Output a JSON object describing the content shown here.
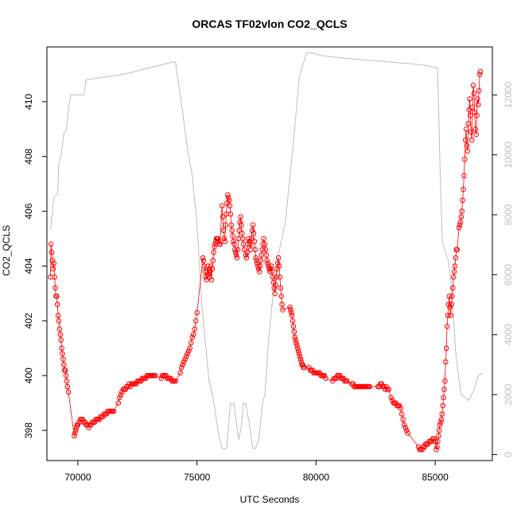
{
  "chart_data": {
    "type": "scatter",
    "title": "ORCAS TF02vlon CO2_QCLS",
    "xlabel": "UTC Seconds",
    "ylabel": "CO2_QCLS",
    "xlim": [
      68700,
      87400
    ],
    "ylim": [
      396.9,
      412.0
    ],
    "y2lim": [
      -200,
      13600
    ],
    "x_ticks": [
      70000,
      75000,
      80000,
      85000
    ],
    "y_ticks": [
      398,
      400,
      402,
      404,
      406,
      408,
      410
    ],
    "y2_ticks": [
      0,
      2000,
      4000,
      6000,
      8000,
      10000,
      12000
    ],
    "grid": false,
    "colors": {
      "co2": "#ff0000",
      "altitude": "#bebebe",
      "axis": "#000000"
    },
    "series": [
      {
        "x": [
          68850,
          68870,
          68900,
          68930,
          68960,
          68990,
          69020,
          69050,
          69080,
          69110,
          69140,
          69170,
          69200,
          69230,
          69260,
          69290,
          69320,
          69350,
          69380,
          69410,
          69440,
          69470,
          69500,
          69530,
          69560,
          69600,
          69850,
          69880,
          69910,
          69940,
          69970,
          70000,
          70050,
          70100,
          70150,
          70200,
          70250,
          70300,
          70350,
          70400,
          70450,
          70500,
          70550,
          70600,
          70650,
          70700,
          70750,
          70800,
          70850,
          70900,
          70950,
          71000,
          71050,
          71100,
          71150,
          71200,
          71250,
          71300,
          71350,
          71400,
          71450,
          71500,
          71700,
          71750,
          71800,
          71850,
          71900,
          71950,
          72000,
          72050,
          72100,
          72150,
          72200,
          72250,
          72300,
          72350,
          72400,
          72450,
          72500,
          72550,
          72600,
          72650,
          72700,
          72750,
          72800,
          72850,
          72900,
          72950,
          73000,
          73050,
          73100,
          73150,
          73200,
          73250,
          73500,
          73550,
          73600,
          73650,
          73700,
          73750,
          73800,
          73850,
          73900,
          73950,
          74000,
          74050,
          74100,
          74300,
          74350,
          74400,
          74450,
          74500,
          74550,
          74600,
          74650,
          74700,
          74750,
          74800,
          74850,
          74900,
          74950,
          75000,
          75250,
          75280,
          75310,
          75340,
          75370,
          75400,
          75430,
          75460,
          75490,
          75520,
          75550,
          75580,
          75610,
          75640,
          75670,
          75700,
          75730,
          75760,
          75790,
          75820,
          75850,
          75880,
          75910,
          75940,
          75970,
          76050,
          76080,
          76110,
          76140,
          76170,
          76200,
          76230,
          76260,
          76290,
          76320,
          76350,
          76380,
          76410,
          76440,
          76470,
          76500,
          76530,
          76560,
          76590,
          76620,
          76650,
          76680,
          76710,
          76740,
          76770,
          76800,
          76830,
          76860,
          76890,
          76920,
          76950,
          76980,
          77050,
          77080,
          77110,
          77140,
          77170,
          77200,
          77230,
          77260,
          77290,
          77320,
          77350,
          77380,
          77410,
          77440,
          77470,
          77500,
          77530,
          77560,
          77590,
          77620,
          77650,
          77680,
          77710,
          77740,
          77770,
          77800,
          77850,
          77880,
          77910,
          77940,
          77970,
          78000,
          78030,
          78060,
          78090,
          78120,
          78150,
          78180,
          78210,
          78240,
          78270,
          78300,
          78330,
          78360,
          78390,
          78420,
          78450,
          78480,
          78510,
          78540,
          78570,
          78600,
          78900,
          78930,
          78960,
          78990,
          79020,
          79050,
          79080,
          79110,
          79140,
          79170,
          79200,
          79230,
          79260,
          79290,
          79320,
          79350,
          79380,
          79410,
          79440,
          79470,
          79500,
          79700,
          79750,
          79800,
          79850,
          79900,
          79950,
          80000,
          80050,
          80100,
          80150,
          80200,
          80250,
          80300,
          80350,
          80400,
          80700,
          80750,
          80800,
          80850,
          80900,
          80950,
          81000,
          81050,
          81100,
          81150,
          81200,
          81250,
          81300,
          81500,
          81550,
          81600,
          81650,
          81700,
          81750,
          81800,
          81850,
          81900,
          81950,
          82000,
          82050,
          82100,
          82150,
          82200,
          82250,
          82600,
          82650,
          82700,
          82750,
          82800,
          82850,
          82900,
          82950,
          83000,
          83050,
          83150,
          83200,
          83250,
          83300,
          83350,
          83400,
          83450,
          83500,
          83550,
          83600,
          83650,
          83700,
          83750,
          83800,
          83850,
          84300,
          84350,
          84400,
          84450,
          84500,
          84550,
          84600,
          84650,
          84700,
          84750,
          84800,
          84850,
          84900,
          84950,
          85000,
          85050,
          85080,
          85110,
          85140,
          85170,
          85200,
          85230,
          85260,
          85290,
          85320,
          85350,
          85380,
          85410,
          85440,
          85470,
          85500,
          85530,
          85560,
          85590,
          85620,
          85650,
          85680,
          85710,
          85740,
          85770,
          85800,
          85830,
          85860,
          85890,
          85920,
          86000,
          86030,
          86060,
          86090,
          86120,
          86150,
          86180,
          86210,
          86240,
          86270,
          86300,
          86330,
          86360,
          86390,
          86420,
          86450,
          86480,
          86510,
          86540,
          86570,
          86600,
          86630,
          86660,
          86690,
          86720,
          86750,
          86780,
          86810,
          86840,
          86870,
          86900
        ],
        "y": [
          403.6,
          404.8,
          404.5,
          404.2,
          403.9,
          404.1,
          403.6,
          403.2,
          402.9,
          402.9,
          402.6,
          402.2,
          402.0,
          401.7,
          401.5,
          401.3,
          401.0,
          400.8,
          400.6,
          400.4,
          400.2,
          400.2,
          400.0,
          399.8,
          399.6,
          399.4,
          397.8,
          397.9,
          398.0,
          398.1,
          398.2,
          398.2,
          398.3,
          398.4,
          398.4,
          398.4,
          398.3,
          398.3,
          398.2,
          398.2,
          398.1,
          398.2,
          398.2,
          398.3,
          398.3,
          398.3,
          398.4,
          398.4,
          398.4,
          398.4,
          398.5,
          398.5,
          398.5,
          398.6,
          398.6,
          398.6,
          398.7,
          398.7,
          398.7,
          398.7,
          398.7,
          398.7,
          399.0,
          399.2,
          399.3,
          399.4,
          399.5,
          399.5,
          399.5,
          399.6,
          399.6,
          399.7,
          399.6,
          399.7,
          399.7,
          399.7,
          399.7,
          399.7,
          399.8,
          399.8,
          399.8,
          399.8,
          399.9,
          399.9,
          399.9,
          399.9,
          400.0,
          400.0,
          400.0,
          400.0,
          400.0,
          400.0,
          400.0,
          400.0,
          399.9,
          400.0,
          400.0,
          400.0,
          400.0,
          399.9,
          399.9,
          399.9,
          399.9,
          399.8,
          399.8,
          399.8,
          399.8,
          400.1,
          400.3,
          400.4,
          400.5,
          400.6,
          400.7,
          400.8,
          400.9,
          401.0,
          401.2,
          401.4,
          401.5,
          401.7,
          402.0,
          402.3,
          404.3,
          404.2,
          404.0,
          403.8,
          403.6,
          403.5,
          403.8,
          404.0,
          403.7,
          403.6,
          403.8,
          404.0,
          403.5,
          403.9,
          404.2,
          404.5,
          404.7,
          404.8,
          404.9,
          405.0,
          405.0,
          405.0,
          404.9,
          404.8,
          404.8,
          406.2,
          405.8,
          405.3,
          405.0,
          404.9,
          405.5,
          405.9,
          406.3,
          406.6,
          406.5,
          406.4,
          406.2,
          405.9,
          405.5,
          405.3,
          405.1,
          404.9,
          404.8,
          404.6,
          404.5,
          404.4,
          404.3,
          404.6,
          405.0,
          405.3,
          405.6,
          405.8,
          405.5,
          405.2,
          405.0,
          404.8,
          404.6,
          404.4,
          404.3,
          404.5,
          404.8,
          405.0,
          404.9,
          404.8,
          404.6,
          405.0,
          405.3,
          405.5,
          405.2,
          404.9,
          404.6,
          404.3,
          404.2,
          404.1,
          404.0,
          403.9,
          403.8,
          404.0,
          404.2,
          404.4,
          404.6,
          404.8,
          405.0,
          404.8,
          404.6,
          404.4,
          404.2,
          404.1,
          404.0,
          403.9,
          403.8,
          403.9,
          404.0,
          403.8,
          403.6,
          403.4,
          403.2,
          403.0,
          403.3,
          403.6,
          403.9,
          404.1,
          404.3,
          404.0,
          403.6,
          403.2,
          402.9,
          402.6,
          402.4,
          402.5,
          402.4,
          402.3,
          402.2,
          402.0,
          401.8,
          401.6,
          401.4,
          401.3,
          401.2,
          401.1,
          401.0,
          400.9,
          400.8,
          400.7,
          400.6,
          400.5,
          400.4,
          400.4,
          400.3,
          400.3,
          400.3,
          400.2,
          400.2,
          400.2,
          400.1,
          400.1,
          400.1,
          400.1,
          400.1,
          400.1,
          400.0,
          400.0,
          400.0,
          400.0,
          399.9,
          399.8,
          399.9,
          399.9,
          399.9,
          400.0,
          400.0,
          400.0,
          399.9,
          399.9,
          399.9,
          399.8,
          399.8,
          399.8,
          399.7,
          399.7,
          399.6,
          399.6,
          399.6,
          399.6,
          399.6,
          399.6,
          399.6,
          399.6,
          399.6,
          399.6,
          399.6,
          399.6,
          399.6,
          399.6,
          399.6,
          399.6,
          399.7,
          399.7,
          399.6,
          399.6,
          399.5,
          399.6,
          399.5,
          399.5,
          399.2,
          399.1,
          399.0,
          399.0,
          399.0,
          398.9,
          398.9,
          398.9,
          398.8,
          398.6,
          398.4,
          398.2,
          398.1,
          398.0,
          397.9,
          397.4,
          397.3,
          397.3,
          397.3,
          397.4,
          397.4,
          397.5,
          397.5,
          397.5,
          397.6,
          397.6,
          397.6,
          397.7,
          397.7,
          397.6,
          397.3,
          397.4,
          397.6,
          397.8,
          398.0,
          398.2,
          398.3,
          398.4,
          398.6,
          398.9,
          399.2,
          399.5,
          399.8,
          400.5,
          401.0,
          401.8,
          402.2,
          402.6,
          402.9,
          402.5,
          402.2,
          402.6,
          402.9,
          403.2,
          403.6,
          403.8,
          404.0,
          404.3,
          404.6,
          404.6,
          405.4,
          405.5,
          405.6,
          405.8,
          406.0,
          406.4,
          406.8,
          407.3,
          407.9,
          408.6,
          409.0,
          408.4,
          408.2,
          409.2,
          409.7,
          410.1,
          409.5,
          408.9,
          408.6,
          409.8,
          410.6,
          410.3,
          409.6,
          409.0,
          408.8,
          409.5,
          410.1,
          409.9,
          410.4,
          411.0,
          411.1
        ],
        "name": ""
      }
    ],
    "altitude": {
      "x": [
        68850,
        69000,
        69150,
        69200,
        69300,
        69400,
        69500,
        69600,
        69700,
        69850,
        70250,
        70350,
        72000,
        73000,
        74000,
        74100,
        74200,
        74400,
        74600,
        74800,
        75000,
        75200,
        75350,
        75500,
        75700,
        75900,
        76050,
        76150,
        76250,
        76400,
        76550,
        76750,
        76850,
        76950,
        77050,
        77200,
        77350,
        77450,
        77600,
        77750,
        77850,
        78000,
        78200,
        78450,
        78700,
        79000,
        79300,
        79600,
        79800,
        80300,
        81500,
        83000,
        84500,
        85100,
        85200,
        85300,
        85450,
        85550,
        85700,
        85850,
        86000,
        86100,
        86250,
        86400,
        86600,
        86800,
        86900,
        87000
      ],
      "y": [
        7500,
        8600,
        8700,
        9700,
        10000,
        10700,
        10800,
        11500,
        12000,
        12000,
        12000,
        12500,
        12700,
        12900,
        13100,
        13100,
        12500,
        11400,
        10200,
        9300,
        7700,
        5000,
        3800,
        2500,
        1800,
        700,
        200,
        200,
        200,
        1700,
        1700,
        500,
        900,
        1700,
        1700,
        1000,
        200,
        200,
        500,
        1700,
        2000,
        3800,
        5400,
        6800,
        7700,
        10000,
        12600,
        13400,
        13400,
        13300,
        13200,
        13100,
        13000,
        12900,
        9700,
        7100,
        6700,
        6500,
        5500,
        3500,
        2500,
        2000,
        1900,
        1800,
        2100,
        2600,
        2700,
        2700
      ]
    }
  }
}
